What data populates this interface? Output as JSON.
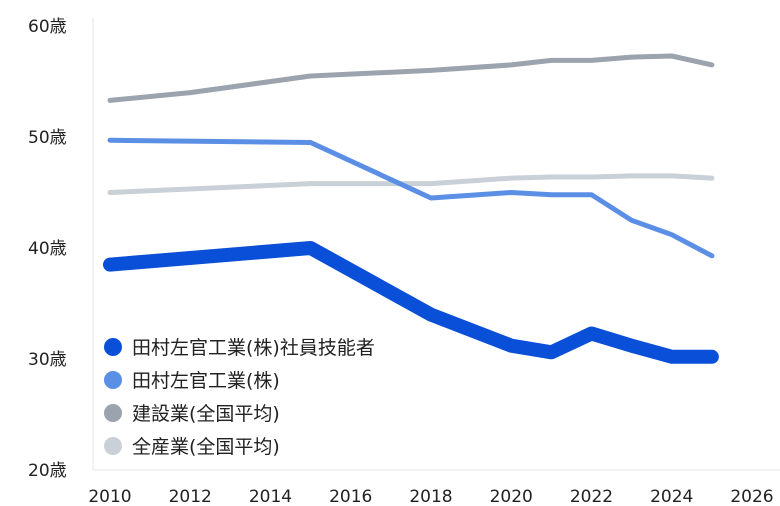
{
  "chart_data": {
    "type": "line",
    "xlim": [
      2010,
      2026
    ],
    "ylim": [
      20,
      60
    ],
    "x_ticks": [
      "2010",
      "2012",
      "2014",
      "2016",
      "2018",
      "2020",
      "2022",
      "2024",
      "2026"
    ],
    "y_ticks": [
      "20歳",
      "30歳",
      "40歳",
      "50歳",
      "60歳"
    ],
    "legend_position": "bottom-left",
    "grid": false,
    "series": [
      {
        "name": "田村左官工業(株)社員技能者",
        "color": "#0a4fd8",
        "x": [
          2010,
          2015,
          2018,
          2020,
          2021,
          2022,
          2023,
          2024,
          2025
        ],
        "values": [
          38.5,
          40.0,
          34.0,
          31.2,
          30.6,
          32.3,
          31.2,
          30.2,
          30.2
        ]
      },
      {
        "name": "田村左官工業(株)",
        "color": "#5b8fe6",
        "x": [
          2010,
          2015,
          2018,
          2020,
          2021,
          2022,
          2023,
          2024,
          2025
        ],
        "values": [
          49.7,
          49.5,
          44.5,
          45.0,
          44.8,
          44.8,
          42.5,
          41.2,
          39.3
        ]
      },
      {
        "name": "建設業(全国平均)",
        "color": "#9ba3ae",
        "x": [
          2010,
          2012,
          2015,
          2018,
          2020,
          2021,
          2022,
          2023,
          2024,
          2025
        ],
        "values": [
          53.3,
          54.0,
          55.5,
          56.0,
          56.5,
          56.9,
          56.9,
          57.2,
          57.3,
          56.5
        ]
      },
      {
        "name": "全産業(全国平均)",
        "color": "#c9d0d8",
        "x": [
          2010,
          2015,
          2018,
          2020,
          2021,
          2022,
          2023,
          2024,
          2025
        ],
        "values": [
          45.0,
          45.8,
          45.8,
          46.3,
          46.4,
          46.4,
          46.5,
          46.5,
          46.3
        ]
      }
    ]
  }
}
